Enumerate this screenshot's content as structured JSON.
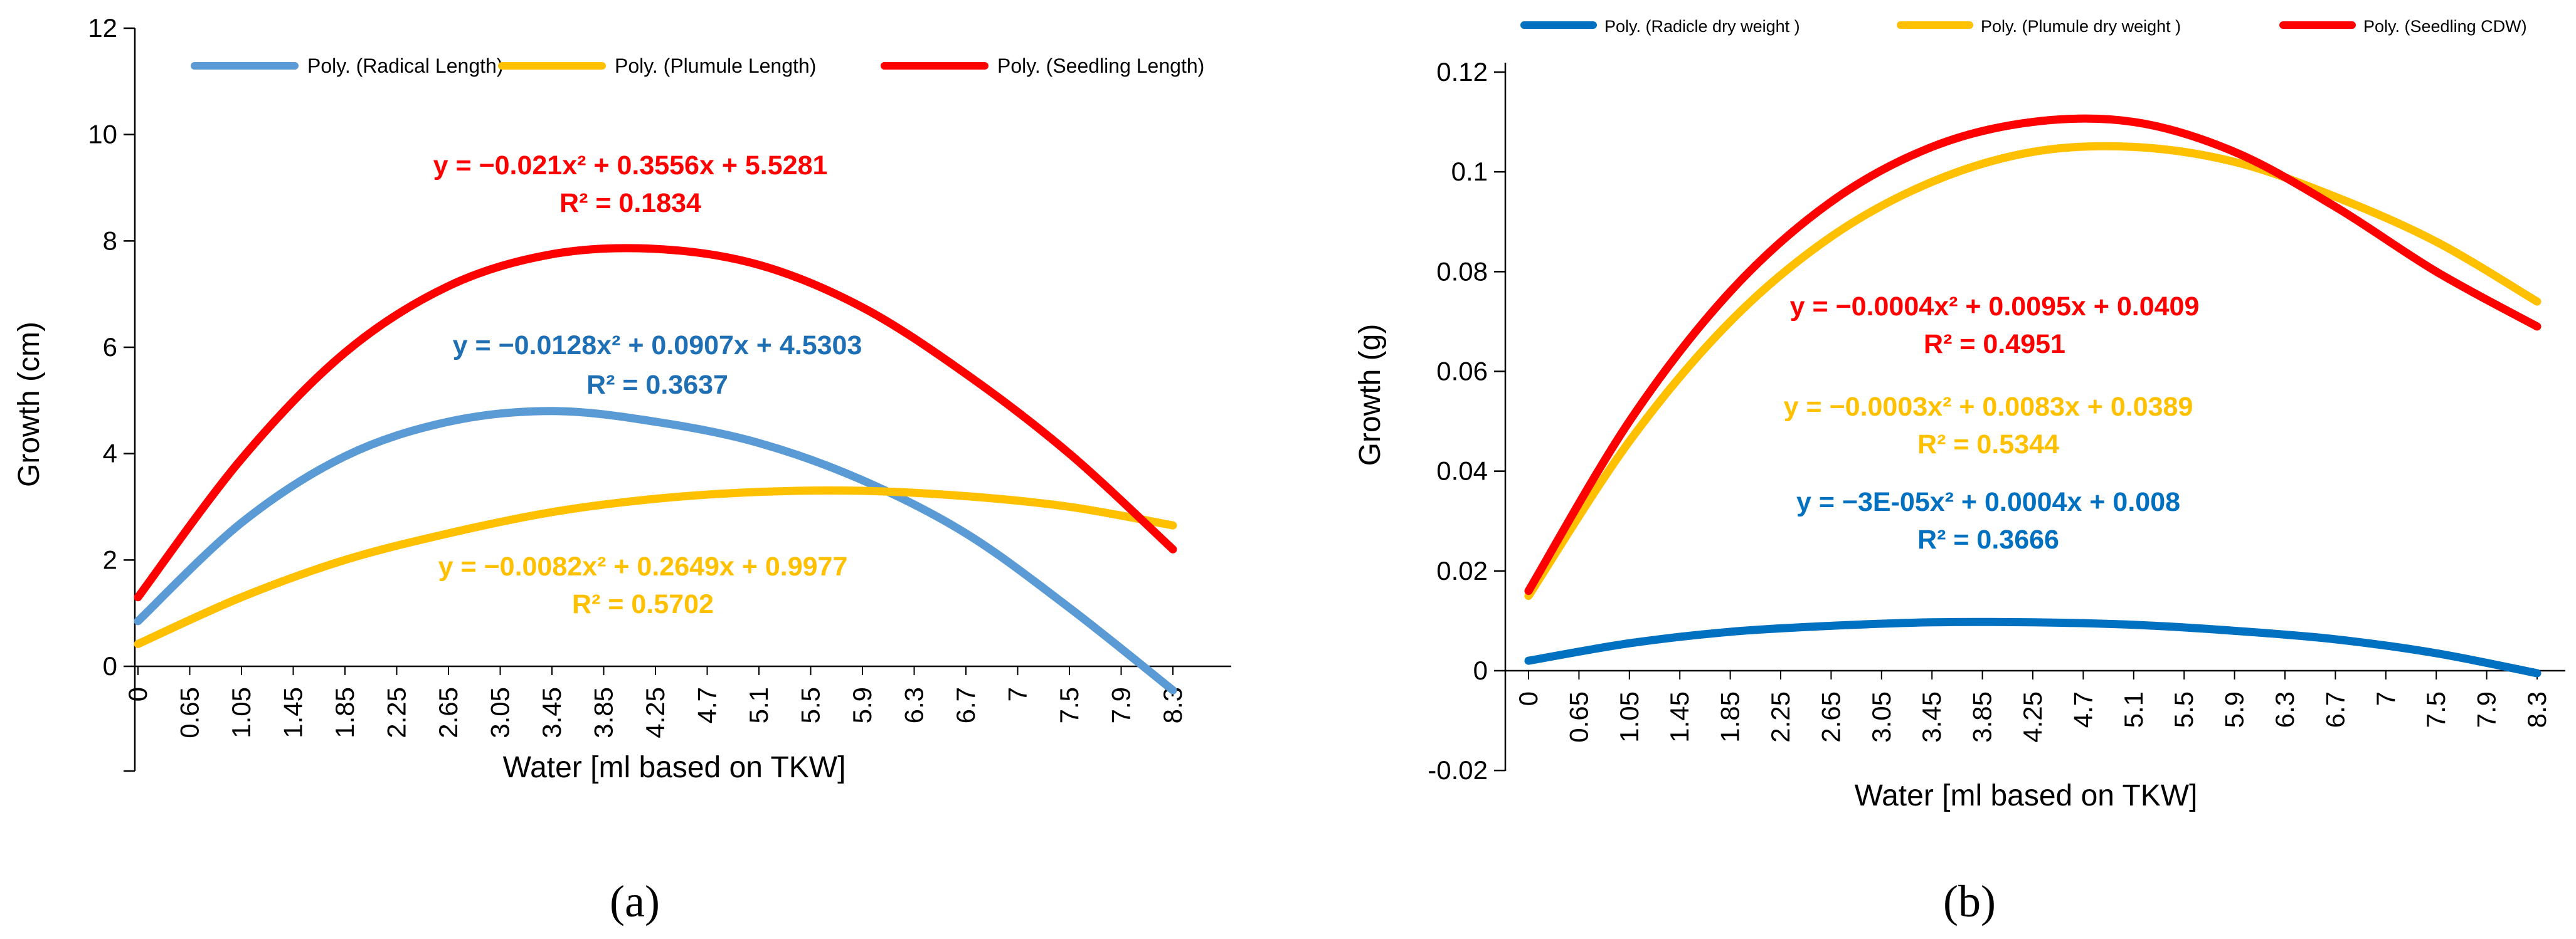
{
  "chart_data": [
    {
      "panel_label": "(a)",
      "type": "line",
      "xlabel": "Water [ml based on TKW]",
      "ylabel": "Growth (cm)",
      "ylim": [
        0,
        12
      ],
      "x_min_tick": -4,
      "yticks": [
        "0",
        "2",
        "4",
        "6",
        "8",
        "10",
        "12"
      ],
      "categories": [
        "0",
        "0.65",
        "1.05",
        "1.45",
        "1.85",
        "2.25",
        "2.65",
        "3.05",
        "3.45",
        "3.85",
        "4.25",
        "4.7",
        "5.1",
        "5.5",
        "5.9",
        "6.3",
        "6.7",
        "7",
        "7.5",
        "7.9",
        "8.3"
      ],
      "legend_position": "top",
      "series": [
        {
          "name": "Poly. (Radical Length)",
          "color": "#5b9bd5",
          "coeffs": [
            -0.0128,
            0.0907,
            4.5303
          ],
          "equation": "y = −0.0128x² + 0.0907x + 4.5303",
          "r2": "R² = 0.3637",
          "label_color": "#1f6fb5"
        },
        {
          "name": "Poly. (Plumule Length)",
          "color": "#ffc000",
          "coeffs": [
            -0.0082,
            0.2649,
            0.9977
          ],
          "equation": "y = −0.0082x² + 0.2649x + 0.9977",
          "r2": "R² = 0.5702",
          "label_color": "#ffc000"
        },
        {
          "name": "Poly. (Seedling Length)",
          "color": "#ff0000",
          "coeffs": [
            -0.021,
            0.3556,
            5.5281
          ],
          "equation": "y = −0.021x² + 0.3556x + 5.5281",
          "r2": "R² = 0.1834",
          "label_color": "#ff0000"
        }
      ],
      "curves": [
        {
          "color": "#5b9bd5",
          "x": [
            0,
            2,
            4,
            6,
            8,
            10,
            12,
            14,
            16,
            18,
            20
          ],
          "y": [
            0.85,
            2.7,
            3.95,
            4.6,
            4.8,
            4.6,
            4.2,
            3.5,
            2.5,
            1.1,
            -0.45
          ]
        },
        {
          "color": "#ffc000",
          "x": [
            0,
            2,
            4,
            6,
            8,
            10,
            12,
            14,
            16,
            18,
            20
          ],
          "y": [
            0.42,
            1.3,
            2.0,
            2.5,
            2.9,
            3.15,
            3.28,
            3.3,
            3.2,
            3.0,
            2.65
          ]
        },
        {
          "color": "#ff0000",
          "x": [
            0,
            2,
            4,
            6,
            8,
            10,
            12,
            14,
            16,
            18,
            20
          ],
          "y": [
            1.3,
            3.9,
            5.9,
            7.15,
            7.75,
            7.85,
            7.55,
            6.75,
            5.5,
            4.0,
            2.2
          ]
        }
      ]
    },
    {
      "panel_label": "(b)",
      "type": "line",
      "xlabel": "Water [ml based on TKW]",
      "ylabel": "Growth (g)",
      "ylim": [
        -0.02,
        0.12
      ],
      "yticks": [
        "-0.02",
        "0",
        "0.02",
        "0.04",
        "0.06",
        "0.08",
        "0.1",
        "0.12"
      ],
      "categories": [
        "0",
        "0.65",
        "1.05",
        "1.45",
        "1.85",
        "2.25",
        "2.65",
        "3.05",
        "3.45",
        "3.85",
        "4.25",
        "4.7",
        "5.1",
        "5.5",
        "5.9",
        "6.3",
        "6.7",
        "7",
        "7.5",
        "7.9",
        "8.3"
      ],
      "legend_position": "top",
      "series": [
        {
          "name": "Poly. (Radicle dry weight )",
          "color": "#0070c0",
          "coeffs": [
            -3e-05,
            0.0004,
            0.008
          ],
          "equation": "y = −3E-05x² + 0.0004x + 0.008",
          "r2": "R² = 0.3666",
          "label_color": "#0070c0"
        },
        {
          "name": "Poly. (Plumule dry weight )",
          "color": "#ffc000",
          "coeffs": [
            -0.0003,
            0.0083,
            0.0389
          ],
          "equation": "y = −0.0003x² + 0.0083x + 0.0389",
          "r2": "R² = 0.5344",
          "label_color": "#ffc000"
        },
        {
          "name": "Poly. (Seedling CDW)",
          "color": "#ff0000",
          "coeffs": [
            -0.0004,
            0.0095,
            0.0409
          ],
          "equation": "y = −0.0004x² + 0.0095x + 0.0409",
          "r2": "R² = 0.4951",
          "label_color": "#ff0000"
        }
      ],
      "curves": [
        {
          "color": "#0070c0",
          "x": [
            0,
            2,
            4,
            6,
            8,
            10,
            12,
            14,
            16,
            18,
            20
          ],
          "y": [
            0.002,
            0.0055,
            0.0078,
            0.009,
            0.0097,
            0.0097,
            0.0092,
            0.008,
            0.0063,
            0.0035,
            -0.0005
          ]
        },
        {
          "color": "#ffc000",
          "x": [
            0,
            2,
            4,
            6,
            8,
            10,
            12,
            14,
            16,
            18,
            20
          ],
          "y": [
            0.015,
            0.046,
            0.07,
            0.087,
            0.098,
            0.104,
            0.105,
            0.102,
            0.095,
            0.086,
            0.074
          ]
        },
        {
          "color": "#ff0000",
          "x": [
            0,
            2,
            4,
            6,
            8,
            10,
            12,
            14,
            16,
            18,
            20
          ],
          "y": [
            0.016,
            0.05,
            0.076,
            0.094,
            0.105,
            0.11,
            0.11,
            0.104,
            0.093,
            0.08,
            0.069
          ]
        }
      ]
    }
  ]
}
